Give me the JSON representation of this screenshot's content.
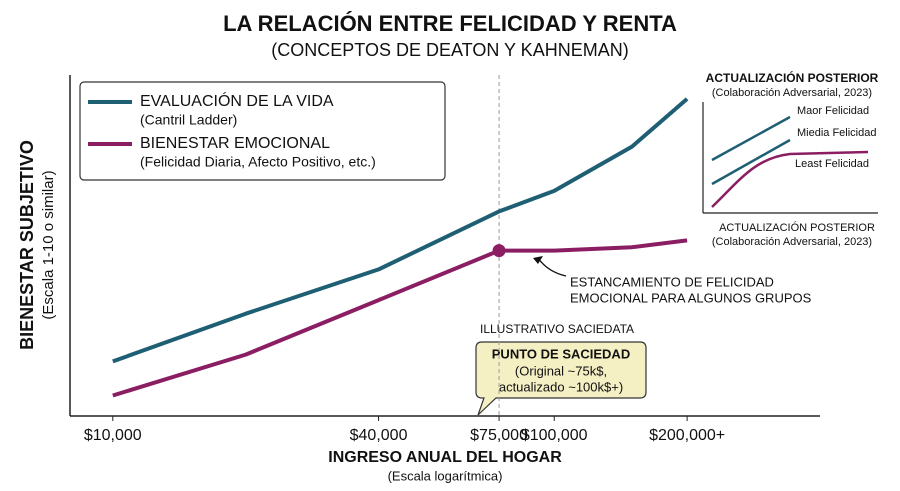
{
  "chart_data": {
    "type": "line",
    "title": "LA RELACIÓN ENTRE FELICIDAD Y RENTA",
    "subtitle": "(CONCEPTOS DE DEATON Y KAHNEMAN)",
    "x_label": "INGRESO ANUAL DEL HOGAR",
    "x_sublabel": "(Escala logarítmica)",
    "y_label": "BIENESTAR SUBJETIVO",
    "y_sublabel": "(Escala 1-10 o similar)",
    "log_x": true,
    "xlim": [
      8000,
      400000
    ],
    "xticks": [
      {
        "value": 10000,
        "label": "$10,000"
      },
      {
        "value": 40000,
        "label": "$40,000"
      },
      {
        "value": 75000,
        "label": "$75,000"
      },
      {
        "value": 100000,
        "label": "$100,000"
      },
      {
        "value": 200000,
        "label": "$200,000+"
      }
    ],
    "ylim": [
      0,
      10
    ],
    "x": [
      10000,
      20000,
      40000,
      75000,
      100000,
      150000,
      200000
    ],
    "series": [
      {
        "name": "EVALUACIÓN DE LA VIDA",
        "description": "(Cantril Ladder)",
        "color": "#1e5f74",
        "values": [
          1.6,
          3.0,
          4.3,
          6.0,
          6.6,
          7.9,
          9.3
        ]
      },
      {
        "name": "BIENESTAR EMOCIONAL",
        "description": "(Felicidad Diaria, Afecto Positivo, etc.)",
        "color": "#8b1e63",
        "values": [
          0.6,
          1.8,
          3.4,
          4.85,
          4.85,
          4.95,
          5.15
        ]
      }
    ],
    "annotations": {
      "stagnation": [
        "ESTANCAMIENTO DE FELICIDAD",
        "EMOCIONAL PARA ALGUNOS GRUPOS"
      ],
      "illustrative": "ILLUSTRATIVO SACIEDATA",
      "satiation_title": "PUNTO DE SACIEDAD",
      "satiation_text": [
        "(Original ~75k$,",
        "actualizado ~100k$+)"
      ]
    },
    "inset": {
      "title": "ACTUALIZACIÓN POSTERIOR",
      "subtitle": "(Colaboración Adversarial, 2023)",
      "bottom_title": "ACTUALIZACIÓN POSTERIOR",
      "bottom_subtitle": "(Colaboración Adversarial, 2023)",
      "labels": [
        "Maor Felicidad",
        "Miedia Felicidad",
        "Least Felicidad"
      ]
    }
  }
}
